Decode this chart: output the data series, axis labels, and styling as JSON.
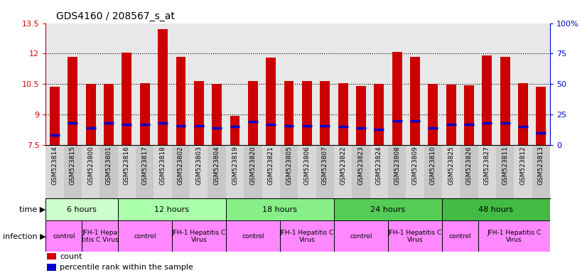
{
  "title": "GDS4160 / 208567_s_at",
  "samples": [
    "GSM523814",
    "GSM523815",
    "GSM523800",
    "GSM523801",
    "GSM523816",
    "GSM523817",
    "GSM523818",
    "GSM523802",
    "GSM523803",
    "GSM523804",
    "GSM523819",
    "GSM523820",
    "GSM523821",
    "GSM523805",
    "GSM523806",
    "GSM523807",
    "GSM523822",
    "GSM523823",
    "GSM523824",
    "GSM523808",
    "GSM523809",
    "GSM523810",
    "GSM523825",
    "GSM523826",
    "GSM523827",
    "GSM523811",
    "GSM523812",
    "GSM523813"
  ],
  "count_values": [
    10.38,
    11.85,
    10.5,
    10.52,
    12.05,
    10.55,
    13.2,
    11.85,
    10.65,
    10.5,
    8.95,
    10.65,
    11.8,
    10.65,
    10.65,
    10.65,
    10.55,
    10.4,
    10.5,
    12.1,
    11.85,
    10.5,
    10.48,
    10.45,
    11.9,
    11.85,
    10.55,
    10.38
  ],
  "percentile_values": [
    8,
    18,
    14,
    18,
    17,
    17,
    18,
    16,
    16,
    14,
    15,
    19,
    17,
    16,
    16,
    16,
    15,
    14,
    13,
    20,
    20,
    14,
    17,
    17,
    18,
    18,
    15,
    10
  ],
  "ylim_left": [
    7.5,
    13.5
  ],
  "ylim_right": [
    0,
    100
  ],
  "yticks_left": [
    7.5,
    9.0,
    10.5,
    12.0,
    13.5
  ],
  "ytick_labels_left": [
    "7.5",
    "9",
    "10.5",
    "12",
    "13.5"
  ],
  "yticks_right": [
    0,
    25,
    50,
    75,
    100
  ],
  "ytick_labels_right": [
    "0",
    "25",
    "50",
    "75",
    "100%"
  ],
  "bar_color": "#cc0000",
  "marker_color": "#0000cc",
  "chart_bg": "#e8e8e8",
  "col_bg_even": "#d8d8d8",
  "col_bg_odd": "#c8c8c8",
  "gridline_y": [
    9.0,
    10.5,
    12.0
  ],
  "time_groups": [
    {
      "label": "6 hours",
      "start": 0,
      "end": 4,
      "color": "#ccffcc"
    },
    {
      "label": "12 hours",
      "start": 4,
      "end": 10,
      "color": "#aaffaa"
    },
    {
      "label": "18 hours",
      "start": 10,
      "end": 16,
      "color": "#88ee88"
    },
    {
      "label": "24 hours",
      "start": 16,
      "end": 22,
      "color": "#55cc55"
    },
    {
      "label": "48 hours",
      "start": 22,
      "end": 28,
      "color": "#44bb44"
    }
  ],
  "infection_groups": [
    {
      "label": "control",
      "start": 0,
      "end": 2
    },
    {
      "label": "JFH-1 Hepa\ntitis C Virus",
      "start": 2,
      "end": 4
    },
    {
      "label": "control",
      "start": 4,
      "end": 7
    },
    {
      "label": "JFH-1 Hepatitis C\nVirus",
      "start": 7,
      "end": 10
    },
    {
      "label": "control",
      "start": 10,
      "end": 13
    },
    {
      "label": "JFH-1 Hepatitis C\nVirus",
      "start": 13,
      "end": 16
    },
    {
      "label": "control",
      "start": 16,
      "end": 19
    },
    {
      "label": "JFH-1 Hepatitis C\nVirus",
      "start": 19,
      "end": 22
    },
    {
      "label": "control",
      "start": 22,
      "end": 24
    },
    {
      "label": "JFH-1 Hepatitis C\nVirus",
      "start": 24,
      "end": 28
    }
  ],
  "infection_color": "#ff88ff",
  "time_label": "time ▶",
  "infection_label": "infection ▶",
  "legend_items": [
    {
      "label": "count",
      "color": "#cc0000"
    },
    {
      "label": "percentile rank within the sample",
      "color": "#0000cc"
    }
  ]
}
